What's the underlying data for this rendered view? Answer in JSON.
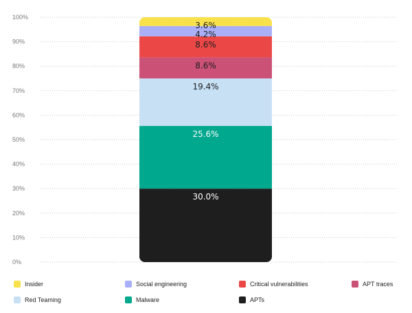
{
  "chart_data": {
    "type": "bar",
    "stacked": true,
    "ylim": [
      0,
      100
    ],
    "yticks": [
      {
        "value": 0,
        "label": "0%"
      },
      {
        "value": 10,
        "label": "10%"
      },
      {
        "value": 20,
        "label": "20%"
      },
      {
        "value": 30,
        "label": "30%"
      },
      {
        "value": 40,
        "label": "40%"
      },
      {
        "value": 50,
        "label": "50%"
      },
      {
        "value": 60,
        "label": "60%"
      },
      {
        "value": 70,
        "label": "70%"
      },
      {
        "value": 80,
        "label": "80%"
      },
      {
        "value": 90,
        "label": "90%"
      },
      {
        "value": 100,
        "label": "100%"
      }
    ],
    "grid": true,
    "legend_position": "bottom",
    "series": [
      {
        "name": "APTs",
        "value": 30.0,
        "label": "30.0%",
        "color": "#1e1e1e",
        "label_color": "#ffffff"
      },
      {
        "name": "Malware",
        "value": 25.6,
        "label": "25.6%",
        "color": "#00a88e",
        "label_color": "#ffffff"
      },
      {
        "name": "Red Teaming",
        "value": 19.4,
        "label": "19.4%",
        "color": "#c7e0f4",
        "label_color": "#1e1e1e"
      },
      {
        "name": "APT traces",
        "value": 8.6,
        "label": "8.6%",
        "color": "#cb5177",
        "label_color": "#1e1e1e"
      },
      {
        "name": "Critical vulnerabilities",
        "value": 8.6,
        "label": "8.6%",
        "color": "#eb4747",
        "label_color": "#1e1e1e"
      },
      {
        "name": "Social engineering",
        "value": 4.2,
        "label": "4.2%",
        "color": "#a9aff9",
        "label_color": "#1e1e1e"
      },
      {
        "name": "Insider",
        "value": 3.6,
        "label": "3.6%",
        "color": "#f9e14b",
        "label_color": "#1e1e1e"
      }
    ],
    "legend": [
      "Insider",
      "Social engineering",
      "Critical vulnerabilities",
      "APT traces",
      "Red Teaming",
      "Malware",
      "APTs"
    ]
  }
}
